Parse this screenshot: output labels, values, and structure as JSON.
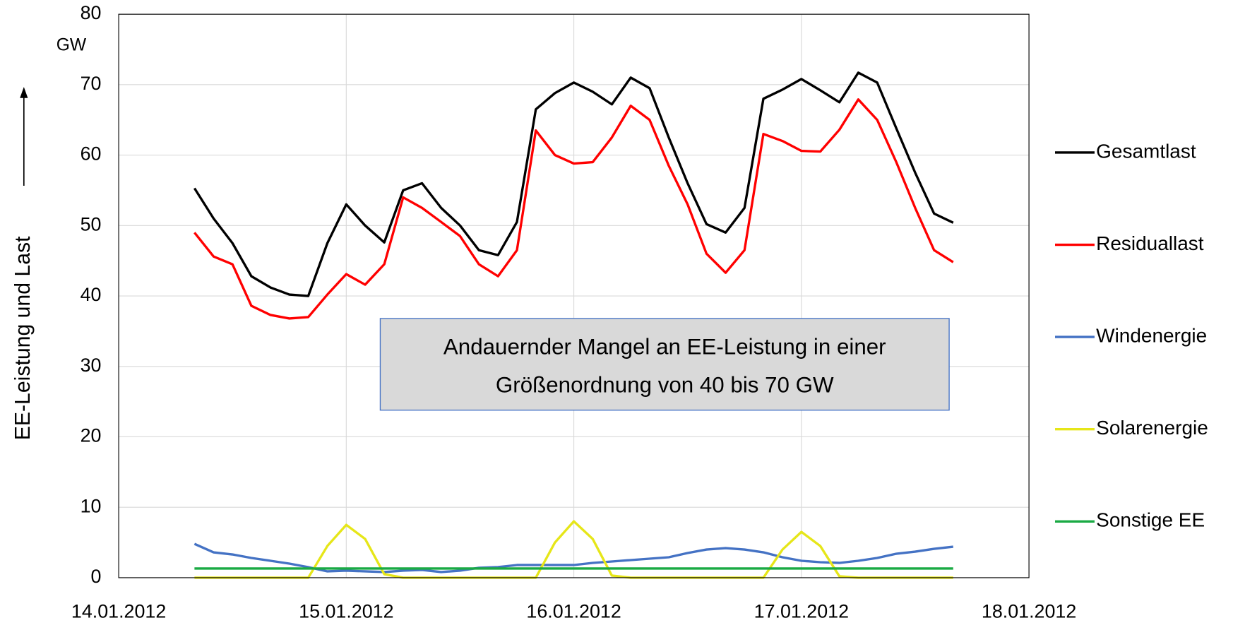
{
  "chart_data": {
    "type": "line",
    "y_label": "EE-Leistung und Last",
    "y_unit": "GW",
    "annotation": [
      "Andauernder Mangel an EE-Leistung in einer",
      "Größenordnung von 40 bis 70 GW"
    ],
    "x": [
      0.333,
      0.417,
      0.5,
      0.583,
      0.667,
      0.75,
      0.833,
      0.917,
      1.0,
      1.083,
      1.167,
      1.25,
      1.333,
      1.417,
      1.5,
      1.583,
      1.667,
      1.75,
      1.833,
      1.917,
      2.0,
      2.083,
      2.167,
      2.25,
      2.333,
      2.417,
      2.5,
      2.583,
      2.667,
      2.75,
      2.833,
      2.917,
      3.0,
      3.083,
      3.167,
      3.25,
      3.333,
      3.417,
      3.5,
      3.583,
      3.667
    ],
    "xlim": [
      0,
      4
    ],
    "xticks": [
      {
        "value": 0,
        "label": "14.01.2012"
      },
      {
        "value": 1,
        "label": "15.01.2012"
      },
      {
        "value": 2,
        "label": "16.01.2012"
      },
      {
        "value": 3,
        "label": "17.01.2012"
      },
      {
        "value": 4,
        "label": "18.01.2012"
      }
    ],
    "ylim": [
      0,
      80
    ],
    "yticks": [
      0,
      10,
      20,
      30,
      40,
      50,
      60,
      70,
      80
    ],
    "grid": true,
    "legend": "right",
    "series": [
      {
        "name": "Gesamtlast",
        "color": "#000000",
        "values": [
          55.3,
          51,
          47.5,
          42.8,
          41.2,
          40.2,
          40,
          47.5,
          53,
          50,
          47.6,
          55,
          56,
          52.5,
          50,
          46.5,
          45.8,
          50.5,
          66.5,
          68.8,
          70.3,
          69,
          67.2,
          71,
          69.5,
          62.5,
          56,
          50.2,
          49,
          52.5,
          68,
          69.3,
          70.8,
          69.2,
          67.5,
          71.7,
          70.3,
          63.8,
          57.5,
          51.7,
          50.4
        ]
      },
      {
        "name": "Residuallast",
        "color": "#ff0000",
        "values": [
          49,
          45.6,
          44.5,
          38.6,
          37.3,
          36.8,
          37,
          40.2,
          43.1,
          41.6,
          44.5,
          54,
          52.5,
          50.5,
          48.5,
          44.5,
          42.8,
          46.5,
          63.5,
          60,
          58.8,
          59,
          62.5,
          67,
          65,
          58.5,
          53,
          46,
          43.3,
          46.5,
          63,
          62,
          60.6,
          60.5,
          63.6,
          67.9,
          65,
          59,
          52.5,
          46.5,
          44.8
        ]
      },
      {
        "name": "Windenergie",
        "color": "#4472c4",
        "values": [
          4.8,
          3.6,
          3.3,
          2.8,
          2.4,
          2.0,
          1.5,
          0.9,
          1.0,
          0.9,
          0.8,
          1.0,
          1.1,
          0.8,
          1.0,
          1.4,
          1.5,
          1.8,
          1.8,
          1.8,
          1.8,
          2.1,
          2.3,
          2.5,
          2.7,
          2.9,
          3.5,
          4.0,
          4.2,
          4.0,
          3.6,
          2.9,
          2.4,
          2.2,
          2.1,
          2.4,
          2.8,
          3.4,
          3.7,
          4.1,
          4.4
        ]
      },
      {
        "name": "Solarenergie",
        "color": "#e6e619",
        "values": [
          0,
          0,
          0,
          0,
          0,
          0,
          0,
          4.5,
          7.5,
          5.5,
          0.5,
          0,
          0,
          0,
          0,
          0,
          0,
          0,
          0,
          5,
          8,
          5.5,
          0.3,
          0,
          0,
          0,
          0,
          0,
          0,
          0,
          0,
          4,
          6.5,
          4.5,
          0.2,
          0,
          0,
          0,
          0,
          0,
          0
        ]
      },
      {
        "name": "Sonstige EE",
        "color": "#1aaa44",
        "values": [
          1.3,
          1.3,
          1.3,
          1.3,
          1.3,
          1.3,
          1.3,
          1.3,
          1.3,
          1.3,
          1.3,
          1.3,
          1.3,
          1.3,
          1.3,
          1.3,
          1.3,
          1.3,
          1.3,
          1.3,
          1.3,
          1.3,
          1.3,
          1.3,
          1.3,
          1.3,
          1.3,
          1.3,
          1.3,
          1.3,
          1.3,
          1.3,
          1.3,
          1.3,
          1.3,
          1.3,
          1.3,
          1.3,
          1.3,
          1.3,
          1.3
        ]
      }
    ]
  }
}
